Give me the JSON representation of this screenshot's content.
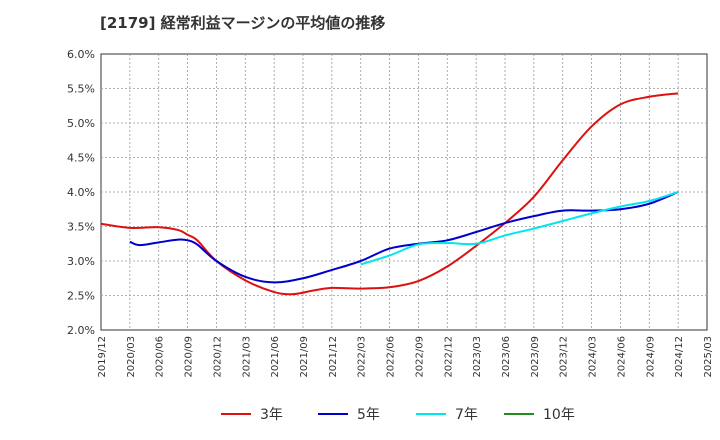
{
  "title": "[2179]  経常利益マージンの平均値の推移",
  "chart_data": {
    "type": "line",
    "title": "[2179]  経常利益マージンの平均値の推移",
    "xlabel": "",
    "ylabel": "",
    "x_ticks": [
      "2019/12",
      "2020/03",
      "2020/06",
      "2020/09",
      "2020/12",
      "2021/03",
      "2021/06",
      "2021/09",
      "2021/12",
      "2022/03",
      "2022/06",
      "2022/09",
      "2022/12",
      "2023/03",
      "2023/06",
      "2023/09",
      "2023/12",
      "2024/03",
      "2024/06",
      "2024/09",
      "2024/12",
      "2025/03"
    ],
    "y_ticks": [
      "2.0%",
      "2.5%",
      "3.0%",
      "3.5%",
      "4.0%",
      "4.5%",
      "5.0%",
      "5.5%",
      "6.0%"
    ],
    "ylim": [
      2.0,
      6.0
    ],
    "grid": true,
    "legend_position": "bottom",
    "series": [
      {
        "name": "3年",
        "color": "#dd1111",
        "x": [
          "2019/12",
          "2020/03",
          "2020/06",
          "2020/08",
          "2020/09",
          "2020/10",
          "2020/12",
          "2021/03",
          "2021/06",
          "2021/08",
          "2021/10",
          "2021/12",
          "2022/03",
          "2022/06",
          "2022/09",
          "2022/12",
          "2023/03",
          "2023/06",
          "2023/09",
          "2023/12",
          "2024/03",
          "2024/06",
          "2024/09",
          "2024/12"
        ],
        "values": [
          3.54,
          3.48,
          3.49,
          3.45,
          3.38,
          3.3,
          3.0,
          2.72,
          2.55,
          2.52,
          2.57,
          2.61,
          2.6,
          2.62,
          2.71,
          2.92,
          3.22,
          3.55,
          3.93,
          4.46,
          4.95,
          5.27,
          5.38,
          5.43
        ]
      },
      {
        "name": "5年",
        "color": "#0000cc",
        "x": [
          "2020/03",
          "2020/04",
          "2020/06",
          "2020/08",
          "2020/09",
          "2020/10",
          "2020/12",
          "2021/03",
          "2021/06",
          "2021/09",
          "2021/12",
          "2022/03",
          "2022/06",
          "2022/09",
          "2022/12",
          "2023/03",
          "2023/06",
          "2023/09",
          "2023/12",
          "2024/03",
          "2024/06",
          "2024/09",
          "2024/12"
        ],
        "values": [
          3.28,
          3.23,
          3.27,
          3.31,
          3.3,
          3.24,
          3.0,
          2.77,
          2.69,
          2.75,
          2.87,
          3.0,
          3.18,
          3.25,
          3.3,
          3.42,
          3.55,
          3.65,
          3.73,
          3.73,
          3.75,
          3.83,
          4.0
        ]
      },
      {
        "name": "7年",
        "color": "#00e5ee",
        "x": [
          "2022/03",
          "2022/06",
          "2022/09",
          "2022/12",
          "2023/03",
          "2023/06",
          "2023/09",
          "2023/12",
          "2024/03",
          "2024/06",
          "2024/09",
          "2024/12"
        ],
        "values": [
          2.95,
          3.08,
          3.24,
          3.26,
          3.25,
          3.37,
          3.47,
          3.58,
          3.69,
          3.79,
          3.87,
          4.0
        ]
      },
      {
        "name": "10年",
        "color": "#228b22",
        "x": [],
        "values": []
      }
    ]
  }
}
